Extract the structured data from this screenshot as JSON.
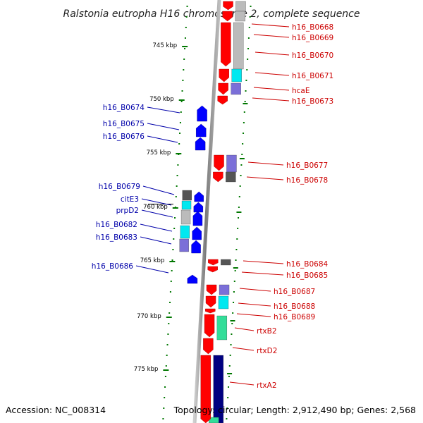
{
  "title": "Ralstonia eutropha H16 chromosome 2, complete sequence",
  "footer": {
    "accession": "Accession: NC_008314",
    "topology": "Topology: circular; Length: 2,912,490 bp; Genes: 2,568"
  },
  "scale_labels": [
    "745 kbp",
    "750 kbp",
    "755 kbp",
    "760 kbp",
    "765 kbp",
    "770 kbp",
    "775 kbp"
  ],
  "genes_forward": [
    "h16_B0668",
    "h16_B0669",
    "h16_B0670",
    "h16_B0671",
    "hcaE",
    "h16_B0673",
    "h16_B0677",
    "h16_B0678",
    "h16_B0684",
    "h16_B0685",
    "h16_B0687",
    "h16_B0688",
    "h16_B0689",
    "rtxB2",
    "rtxD2",
    "rtxA2"
  ],
  "genes_reverse": [
    "h16_B0674",
    "h16_B0675",
    "h16_B0676",
    "h16_B0679",
    "citE3",
    "prpD2",
    "h16_B0682",
    "h16_B0683",
    "h16_B0686"
  ],
  "colors": {
    "forward_strand": "#ff0000",
    "reverse_strand": "#0000ff",
    "forward_label": "#cc0000",
    "reverse_label": "#0000aa",
    "backbone": "#888888",
    "ticks": "#007700",
    "cog_cyan": "#00e8f0",
    "cog_gray": "#bbbbbb",
    "cog_dark": "#555555",
    "cog_navy": "#000080",
    "cog_purple": "#7b6fd8",
    "cog_green": "#33dd99"
  }
}
